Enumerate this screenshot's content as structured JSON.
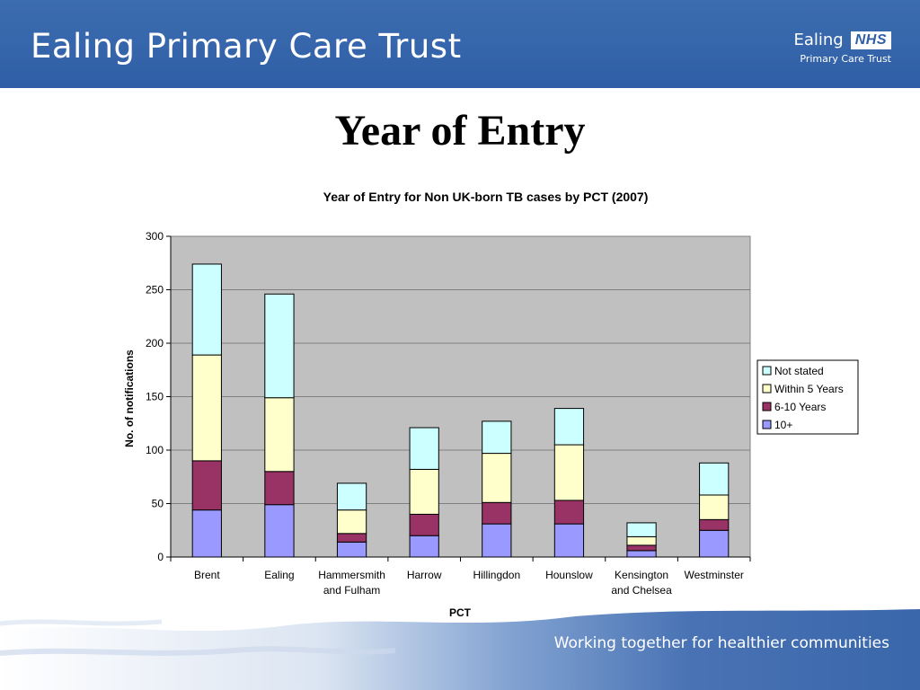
{
  "header": {
    "org_title": "Ealing Primary Care Trust",
    "logo_name": "Ealing",
    "logo_badge": "NHS",
    "logo_sub": "Primary Care Trust"
  },
  "slide": {
    "title": "Year of Entry"
  },
  "footer": {
    "tagline": "Working together for healthier communities"
  },
  "colors": {
    "brand_blue": "#2f5ea6",
    "plot_bg": "#c0c0c0",
    "not_stated": "#ccffff",
    "within_5_years": "#ffffcc",
    "6_10_years": "#993366",
    "10_plus": "#9999ff"
  },
  "chart_data": {
    "type": "bar",
    "stacked": true,
    "title": "Year of Entry for Non UK-born TB cases by PCT (2007)",
    "xlabel": "PCT",
    "ylabel": "No. of notifications",
    "ylim": [
      0,
      300
    ],
    "yticks": [
      0,
      50,
      100,
      150,
      200,
      250,
      300
    ],
    "grid": true,
    "legend_position": "right",
    "categories": [
      [
        "Brent"
      ],
      [
        "Ealing"
      ],
      [
        "Hammersmith",
        "and Fulham"
      ],
      [
        "Harrow"
      ],
      [
        "Hillingdon"
      ],
      [
        "Hounslow"
      ],
      [
        "Kensington",
        "and Chelsea"
      ],
      [
        "Westminster"
      ]
    ],
    "series": [
      {
        "name": "10+",
        "color": "#9999ff",
        "values": [
          44,
          49,
          14,
          20,
          31,
          31,
          6,
          25
        ]
      },
      {
        "name": "6-10 Years",
        "color": "#993366",
        "values": [
          46,
          31,
          8,
          20,
          20,
          22,
          5,
          10
        ]
      },
      {
        "name": "Within 5 Years",
        "color": "#ffffcc",
        "values": [
          99,
          69,
          22,
          42,
          46,
          52,
          8,
          23
        ]
      },
      {
        "name": "Not stated",
        "color": "#ccffff",
        "values": [
          85,
          97,
          25,
          39,
          30,
          34,
          13,
          30
        ]
      }
    ],
    "legend_order": [
      "Not stated",
      "Within 5 Years",
      "6-10 Years",
      "10+"
    ]
  }
}
